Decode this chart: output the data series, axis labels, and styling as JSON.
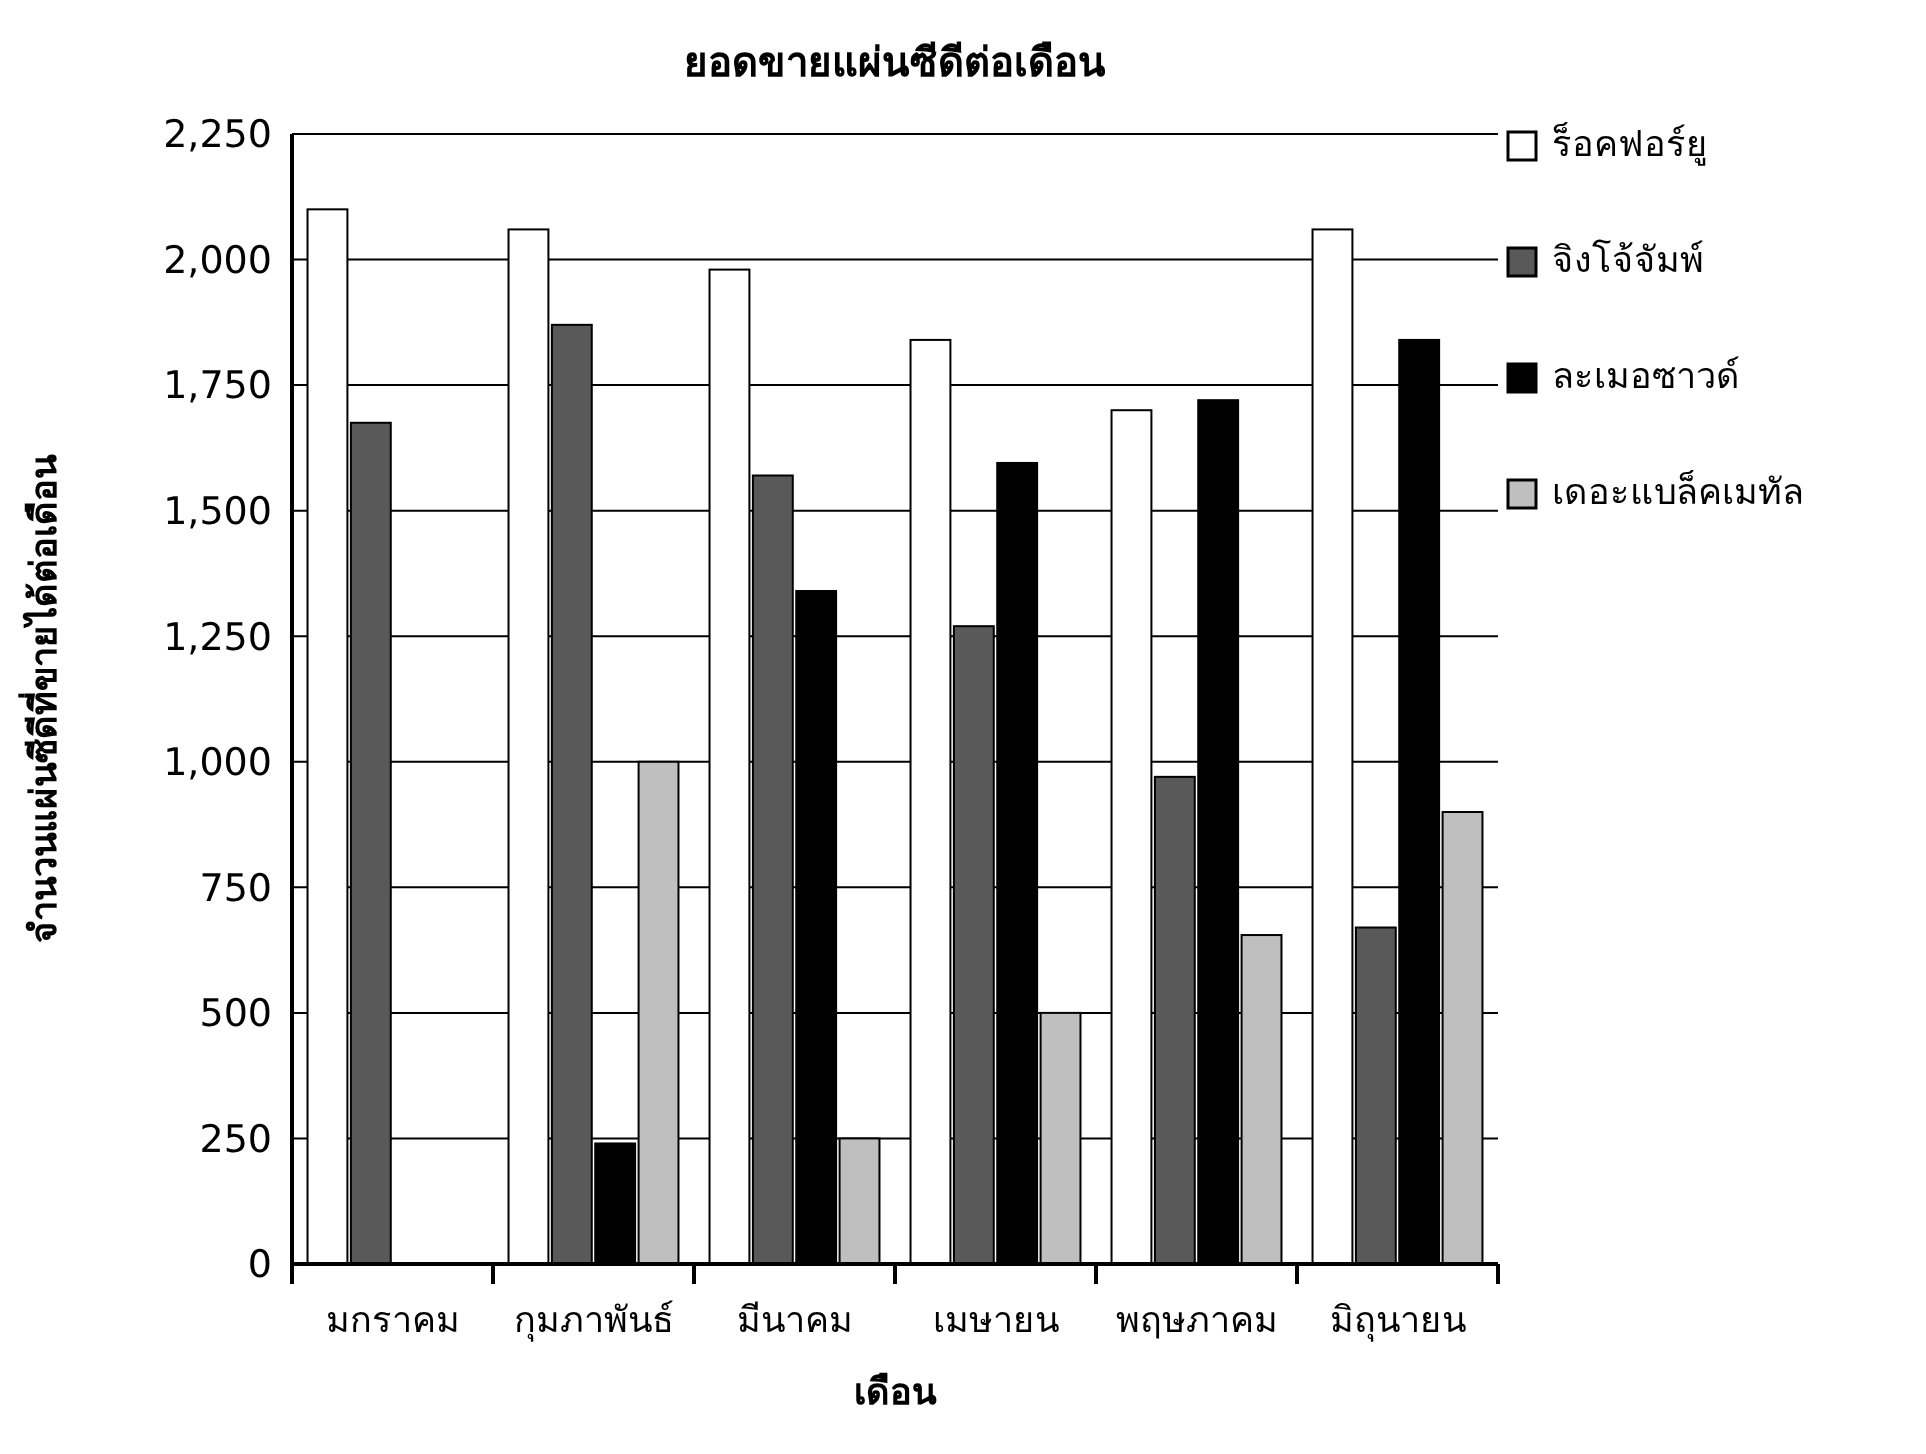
{
  "chart_data": {
    "type": "bar",
    "title": "ยอดขายแผ่นซีดีต่อเดือน",
    "xlabel": "เดือน",
    "ylabel": "จำนวนแผ่นซีดีที่ขายได้ต่อเดือน",
    "categories": [
      "มกราคม",
      "กุมภาพันธ์",
      "มีนาคม",
      "เมษายน",
      "พฤษภาคม",
      "มิถุนายน"
    ],
    "series": [
      {
        "name": "ร็อคฟอร์ยู",
        "color": "#ffffff",
        "values": [
          2100,
          2060,
          1980,
          1840,
          1700,
          2060
        ]
      },
      {
        "name": "จิงโจ้จัมพ์",
        "color": "#595959",
        "values": [
          1675,
          1870,
          1570,
          1270,
          970,
          670
        ]
      },
      {
        "name": "ละเมอซาวด์",
        "color": "#000000",
        "values": [
          0,
          240,
          1340,
          1595,
          1720,
          1840
        ]
      },
      {
        "name": "เดอะแบล็คเมทัล",
        "color": "#bfbfbf",
        "values": [
          0,
          1000,
          250,
          500,
          655,
          900
        ]
      }
    ],
    "ylim": [
      0,
      2250
    ],
    "yticks": [
      {
        "value": 0,
        "label": "0"
      },
      {
        "value": 250,
        "label": "250"
      },
      {
        "value": 500,
        "label": "500"
      },
      {
        "value": 750,
        "label": "750"
      },
      {
        "value": 1000,
        "label": "1,000"
      },
      {
        "value": 1250,
        "label": "1,250"
      },
      {
        "value": 1500,
        "label": "1,500"
      },
      {
        "value": 1750,
        "label": "1,750"
      },
      {
        "value": 2000,
        "label": "2,000"
      },
      {
        "value": 2250,
        "label": "2,250"
      }
    ],
    "grid": "y",
    "legend": "right"
  }
}
